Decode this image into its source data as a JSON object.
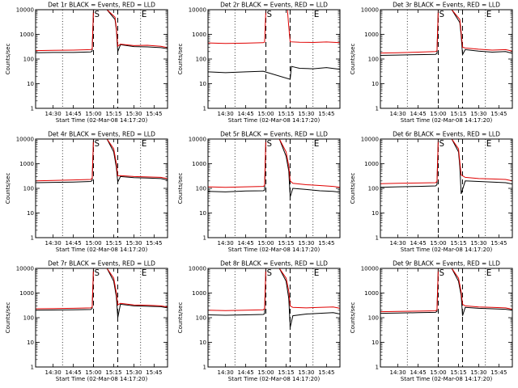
{
  "chart_data": [
    {
      "type": "line",
      "title": "Det 1r BLACK = Events, RED = LLD",
      "xlabel": "Start Time (02-Mar-08 14:17:20)",
      "ylabel": "Counts/sec",
      "ylim": [
        1,
        10000
      ],
      "yscale": "log",
      "yticks": [
        "1",
        "10",
        "100",
        "1000",
        "10000"
      ],
      "xticks": [
        "14:30",
        "14:45",
        "15:00",
        "15:15",
        "15:30",
        "15:45"
      ],
      "xlim": [
        "14:17",
        "15:55"
      ],
      "markers": [
        {
          "label": "S",
          "time": "15:00"
        },
        {
          "label": "E",
          "time": "15:35"
        }
      ],
      "vlines_dashed": [
        "15:00",
        "15:18"
      ],
      "vlines_dotted": [
        "14:37",
        "15:35"
      ],
      "series": [
        {
          "color": "#000000",
          "x": [
            "14:17",
            "14:30",
            "14:45",
            "14:58",
            "14:59",
            "15:00",
            "15:03",
            "15:10",
            "15:16",
            "15:17",
            "15:18",
            "15:20",
            "15:30",
            "15:40",
            "15:50",
            "15:55"
          ],
          "y": [
            180,
            185,
            185,
            195,
            210,
            10000,
            10000,
            10000,
            4000,
            1500,
            200,
            380,
            320,
            310,
            290,
            260
          ]
        },
        {
          "color": "#e00000",
          "x": [
            "14:17",
            "14:30",
            "14:45",
            "14:58",
            "14:59",
            "15:00",
            "15:03",
            "15:10",
            "15:16",
            "15:17",
            "15:18",
            "15:20",
            "15:30",
            "15:40",
            "15:50",
            "15:55"
          ],
          "y": [
            220,
            225,
            230,
            240,
            260,
            10000,
            10000,
            10000,
            5000,
            1800,
            330,
            400,
            350,
            360,
            330,
            290
          ]
        }
      ]
    },
    {
      "type": "line",
      "title": "Det 2r BLACK = Events, RED = LLD",
      "xlabel": "Start Time (02-Mar-08 14:17:20)",
      "ylabel": "Counts/sec",
      "ylim": [
        1,
        10000
      ],
      "yscale": "log",
      "yticks": [
        "1",
        "10",
        "100",
        "1000",
        "10000"
      ],
      "xticks": [
        "14:30",
        "14:45",
        "15:00",
        "15:15",
        "15:30",
        "15:45"
      ],
      "xlim": [
        "14:17",
        "15:55"
      ],
      "markers": [
        {
          "label": "S",
          "time": "15:00"
        },
        {
          "label": "E",
          "time": "15:35"
        }
      ],
      "vlines_dashed": [
        "15:00",
        "15:18"
      ],
      "vlines_dotted": [
        "14:37",
        "15:35"
      ],
      "series": [
        {
          "color": "#000000",
          "x": [
            "14:17",
            "14:30",
            "14:45",
            "14:58",
            "15:18",
            "15:19",
            "15:25",
            "15:35",
            "15:45",
            "15:55"
          ],
          "y": [
            30,
            28,
            30,
            32,
            15,
            50,
            42,
            40,
            45,
            38
          ]
        },
        {
          "color": "#e00000",
          "x": [
            "14:17",
            "14:30",
            "14:45",
            "14:58",
            "14:59",
            "15:00",
            "15:10",
            "15:16",
            "15:17",
            "15:18",
            "15:25",
            "15:35",
            "15:45",
            "15:55"
          ],
          "y": [
            450,
            430,
            440,
            460,
            480,
            10000,
            10000,
            10000,
            2000,
            500,
            480,
            470,
            490,
            460
          ]
        }
      ]
    },
    {
      "type": "line",
      "title": "Det 3r BLACK = Events, RED = LLD",
      "xlabel": "Start Time (02-Mar-08 14:17:20)",
      "ylabel": "Counts/sec",
      "ylim": [
        1,
        10000
      ],
      "yscale": "log",
      "yticks": [
        "1",
        "10",
        "100",
        "1000",
        "10000"
      ],
      "xticks": [
        "14:30",
        "14:45",
        "15:00",
        "15:15",
        "15:30",
        "15:45"
      ],
      "xlim": [
        "14:17",
        "15:55"
      ],
      "markers": [
        {
          "label": "S",
          "time": "15:00"
        },
        {
          "label": "E",
          "time": "15:35"
        }
      ],
      "vlines_dashed": [
        "15:00",
        "15:18"
      ],
      "vlines_dotted": [
        "14:37",
        "15:35"
      ],
      "series": [
        {
          "color": "#000000",
          "x": [
            "14:17",
            "14:30",
            "14:45",
            "14:58",
            "14:59",
            "15:00",
            "15:10",
            "15:16",
            "15:17",
            "15:18",
            "15:20",
            "15:30",
            "15:40",
            "15:50",
            "15:55"
          ],
          "y": [
            140,
            145,
            150,
            155,
            170,
            10000,
            10000,
            3000,
            900,
            150,
            240,
            210,
            190,
            200,
            170
          ]
        },
        {
          "color": "#e00000",
          "x": [
            "14:17",
            "14:30",
            "14:45",
            "14:58",
            "14:59",
            "15:00",
            "15:10",
            "15:16",
            "15:17",
            "15:18",
            "15:20",
            "15:30",
            "15:40",
            "15:50",
            "15:55"
          ],
          "y": [
            175,
            180,
            190,
            200,
            220,
            10000,
            10000,
            4000,
            1200,
            300,
            280,
            250,
            230,
            240,
            210
          ]
        }
      ]
    },
    {
      "type": "line",
      "title": "Det 4r BLACK = Events, RED = LLD",
      "xlabel": "Start Time (02-Mar-08 14:17:20)",
      "ylabel": "Counts/sec",
      "ylim": [
        1,
        10000
      ],
      "yscale": "log",
      "yticks": [
        "1",
        "10",
        "100",
        "1000",
        "10000"
      ],
      "xticks": [
        "14:30",
        "14:45",
        "15:00",
        "15:15",
        "15:30",
        "15:45"
      ],
      "xlim": [
        "14:17",
        "15:55"
      ],
      "markers": [
        {
          "label": "S",
          "time": "15:00"
        },
        {
          "label": "E",
          "time": "15:35"
        }
      ],
      "vlines_dashed": [
        "15:00",
        "15:18"
      ],
      "vlines_dotted": [
        "14:37",
        "15:35"
      ],
      "series": [
        {
          "color": "#000000",
          "x": [
            "14:17",
            "14:30",
            "14:45",
            "14:58",
            "14:59",
            "15:00",
            "15:10",
            "15:15",
            "15:17",
            "15:18",
            "15:20",
            "15:30",
            "15:40",
            "15:50",
            "15:55"
          ],
          "y": [
            170,
            175,
            180,
            190,
            210,
            10000,
            10000,
            3000,
            700,
            180,
            300,
            270,
            260,
            250,
            220
          ]
        },
        {
          "color": "#e00000",
          "x": [
            "14:17",
            "14:30",
            "14:45",
            "14:58",
            "14:59",
            "15:00",
            "15:10",
            "15:15",
            "15:17",
            "15:18",
            "15:20",
            "15:30",
            "15:40",
            "15:50",
            "15:55"
          ],
          "y": [
            200,
            210,
            220,
            230,
            260,
            10000,
            10000,
            4000,
            1000,
            320,
            330,
            300,
            290,
            280,
            250
          ]
        }
      ]
    },
    {
      "type": "line",
      "title": "Det 5r BLACK = Events, RED = LLD",
      "xlabel": "Start Time (02-Mar-08 14:17:20)",
      "ylabel": "Counts/sec",
      "ylim": [
        1,
        10000
      ],
      "yscale": "log",
      "yticks": [
        "1",
        "10",
        "100",
        "1000",
        "10000"
      ],
      "xticks": [
        "14:30",
        "14:45",
        "15:00",
        "15:15",
        "15:30",
        "15:45"
      ],
      "xlim": [
        "14:17",
        "15:55"
      ],
      "markers": [
        {
          "label": "S",
          "time": "15:00"
        },
        {
          "label": "E",
          "time": "15:35"
        }
      ],
      "vlines_dashed": [
        "15:00",
        "15:18"
      ],
      "vlines_dotted": [
        "14:37",
        "15:35"
      ],
      "series": [
        {
          "color": "#000000",
          "x": [
            "14:17",
            "14:30",
            "14:45",
            "14:58",
            "14:59",
            "15:00",
            "15:10",
            "15:15",
            "15:17",
            "15:18",
            "15:20",
            "15:30",
            "15:40",
            "15:50",
            "15:55"
          ],
          "y": [
            75,
            72,
            78,
            80,
            85,
            10000,
            10000,
            2000,
            500,
            45,
            100,
            90,
            80,
            75,
            70
          ]
        },
        {
          "color": "#e00000",
          "x": [
            "14:17",
            "14:30",
            "14:45",
            "14:58",
            "14:59",
            "15:00",
            "15:10",
            "15:15",
            "15:17",
            "15:18",
            "15:20",
            "15:30",
            "15:40",
            "15:50",
            "15:55"
          ],
          "y": [
            115,
            110,
            115,
            120,
            130,
            10000,
            10000,
            3000,
            800,
            200,
            160,
            140,
            130,
            120,
            110
          ]
        }
      ]
    },
    {
      "type": "line",
      "title": "Det 6r BLACK = Events, RED = LLD",
      "xlabel": "Start Time (02-Mar-08 14:17:20)",
      "ylabel": "Counts/sec",
      "ylim": [
        1,
        10000
      ],
      "yscale": "log",
      "yticks": [
        "1",
        "10",
        "100",
        "1000",
        "10000"
      ],
      "xticks": [
        "14:30",
        "14:45",
        "15:00",
        "15:15",
        "15:30",
        "15:45"
      ],
      "xlim": [
        "14:17",
        "15:55"
      ],
      "markers": [
        {
          "label": "S",
          "time": "15:00"
        },
        {
          "label": "E",
          "time": "15:35"
        }
      ],
      "vlines_dashed": [
        "15:00",
        "15:18"
      ],
      "vlines_dotted": [
        "14:37",
        "15:35"
      ],
      "series": [
        {
          "color": "#000000",
          "x": [
            "14:17",
            "14:30",
            "14:45",
            "14:58",
            "14:59",
            "15:00",
            "15:10",
            "15:15",
            "15:16",
            "15:17",
            "15:20",
            "15:30",
            "15:40",
            "15:50",
            "15:55"
          ],
          "y": [
            110,
            115,
            120,
            125,
            140,
            10000,
            10000,
            3000,
            800,
            60,
            200,
            190,
            180,
            170,
            150
          ]
        },
        {
          "color": "#e00000",
          "x": [
            "14:17",
            "14:30",
            "14:45",
            "14:58",
            "14:59",
            "15:00",
            "15:10",
            "15:15",
            "15:16",
            "15:17",
            "15:20",
            "15:30",
            "15:40",
            "15:50",
            "15:55"
          ],
          "y": [
            155,
            160,
            165,
            170,
            190,
            10000,
            10000,
            4000,
            1200,
            350,
            280,
            250,
            240,
            230,
            200
          ]
        }
      ]
    },
    {
      "type": "line",
      "title": "Det 7r BLACK = Events, RED = LLD",
      "xlabel": "Start Time (02-Mar-08 14:17:20)",
      "ylabel": "Counts/sec",
      "ylim": [
        1,
        10000
      ],
      "yscale": "log",
      "yticks": [
        "1",
        "10",
        "100",
        "1000",
        "10000"
      ],
      "xticks": [
        "14:30",
        "14:45",
        "15:00",
        "15:15",
        "15:30",
        "15:45"
      ],
      "xlim": [
        "14:17",
        "15:55"
      ],
      "markers": [
        {
          "label": "S",
          "time": "15:00"
        },
        {
          "label": "E",
          "time": "15:35"
        }
      ],
      "vlines_dashed": [
        "15:00",
        "15:18"
      ],
      "vlines_dotted": [
        "14:37",
        "15:35"
      ],
      "series": [
        {
          "color": "#000000",
          "x": [
            "14:17",
            "14:30",
            "14:45",
            "14:58",
            "14:59",
            "15:00",
            "15:10",
            "15:15",
            "15:17",
            "15:18",
            "15:20",
            "15:30",
            "15:40",
            "15:50",
            "15:55"
          ],
          "y": [
            200,
            205,
            210,
            215,
            240,
            10000,
            10000,
            3000,
            700,
            100,
            350,
            300,
            290,
            280,
            250
          ]
        },
        {
          "color": "#e00000",
          "x": [
            "14:17",
            "14:30",
            "14:45",
            "14:58",
            "14:59",
            "15:00",
            "15:10",
            "15:15",
            "15:17",
            "15:18",
            "15:20",
            "15:30",
            "15:40",
            "15:50",
            "15:55"
          ],
          "y": [
            230,
            235,
            240,
            250,
            270,
            10000,
            10000,
            4000,
            1000,
            330,
            380,
            330,
            320,
            300,
            270
          ]
        }
      ]
    },
    {
      "type": "line",
      "title": "Det 8r BLACK = Events, RED = LLD",
      "xlabel": "Start Time (02-Mar-08 14:17:20)",
      "ylabel": "Counts/sec",
      "ylim": [
        1,
        10000
      ],
      "yscale": "log",
      "yticks": [
        "1",
        "10",
        "100",
        "1000",
        "10000"
      ],
      "xticks": [
        "14:30",
        "14:45",
        "15:00",
        "15:15",
        "15:30",
        "15:45"
      ],
      "xlim": [
        "14:17",
        "15:55"
      ],
      "markers": [
        {
          "label": "S",
          "time": "15:00"
        },
        {
          "label": "E",
          "time": "15:35"
        }
      ],
      "vlines_dashed": [
        "15:00",
        "15:18"
      ],
      "vlines_dotted": [
        "14:37",
        "15:35"
      ],
      "series": [
        {
          "color": "#000000",
          "x": [
            "14:17",
            "14:30",
            "14:45",
            "14:58",
            "14:59",
            "15:00",
            "15:10",
            "15:15",
            "15:17",
            "15:18",
            "15:20",
            "15:30",
            "15:40",
            "15:50",
            "15:55"
          ],
          "y": [
            130,
            125,
            130,
            135,
            145,
            10000,
            10000,
            3000,
            600,
            40,
            120,
            140,
            150,
            160,
            140
          ]
        },
        {
          "color": "#e00000",
          "x": [
            "14:17",
            "14:30",
            "14:45",
            "14:58",
            "14:59",
            "15:00",
            "15:10",
            "15:15",
            "15:17",
            "15:18",
            "15:20",
            "15:30",
            "15:40",
            "15:50",
            "15:55"
          ],
          "y": [
            200,
            195,
            200,
            210,
            230,
            10000,
            10000,
            4000,
            1200,
            300,
            260,
            250,
            260,
            270,
            240
          ]
        }
      ]
    },
    {
      "type": "line",
      "title": "Det 9r BLACK = Events, RED = LLD",
      "xlabel": "Start Time (02-Mar-08 14:17:20)",
      "ylabel": "Counts/sec",
      "ylim": [
        1,
        10000
      ],
      "yscale": "log",
      "yticks": [
        "1",
        "10",
        "100",
        "1000",
        "10000"
      ],
      "xticks": [
        "14:30",
        "14:45",
        "15:00",
        "15:15",
        "15:30",
        "15:45"
      ],
      "xlim": [
        "14:17",
        "15:55"
      ],
      "markers": [
        {
          "label": "S",
          "time": "15:00"
        },
        {
          "label": "E",
          "time": "15:35"
        }
      ],
      "vlines_dashed": [
        "15:00",
        "15:18"
      ],
      "vlines_dotted": [
        "14:37",
        "15:35"
      ],
      "series": [
        {
          "color": "#000000",
          "x": [
            "14:17",
            "14:30",
            "14:45",
            "14:58",
            "14:59",
            "15:00",
            "15:10",
            "15:15",
            "15:17",
            "15:18",
            "15:20",
            "15:30",
            "15:40",
            "15:50",
            "15:55"
          ],
          "y": [
            150,
            155,
            160,
            165,
            180,
            10000,
            10000,
            3000,
            800,
            120,
            260,
            240,
            230,
            220,
            200
          ]
        },
        {
          "color": "#e00000",
          "x": [
            "14:17",
            "14:30",
            "14:45",
            "14:58",
            "14:59",
            "15:00",
            "15:10",
            "15:15",
            "15:17",
            "15:18",
            "15:20",
            "15:30",
            "15:40",
            "15:50",
            "15:55"
          ],
          "y": [
            175,
            180,
            185,
            190,
            210,
            10000,
            10000,
            4000,
            1100,
            350,
            300,
            270,
            260,
            250,
            220
          ]
        }
      ]
    }
  ]
}
